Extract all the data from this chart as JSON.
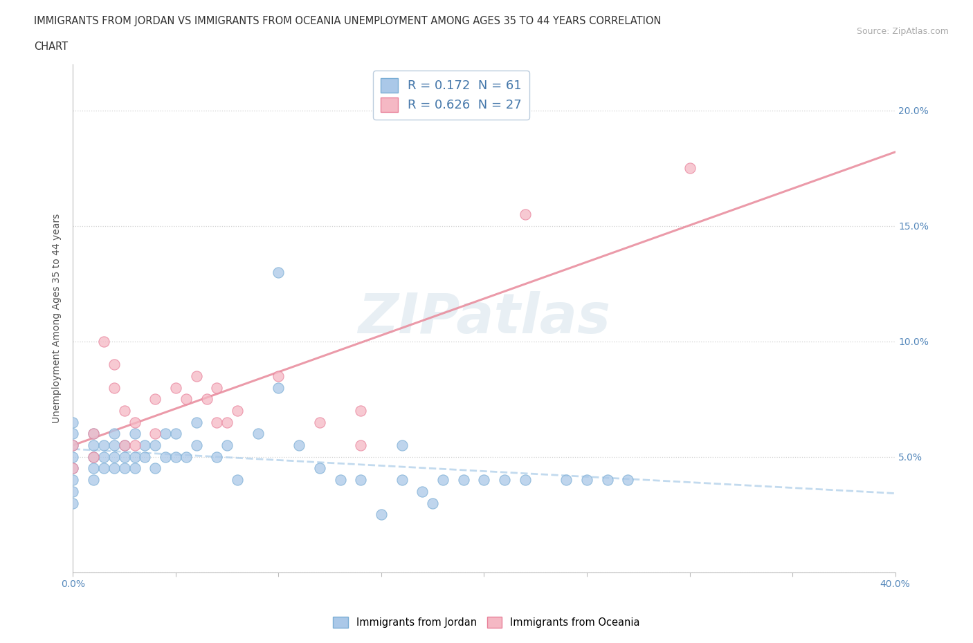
{
  "title_line1": "IMMIGRANTS FROM JORDAN VS IMMIGRANTS FROM OCEANIA UNEMPLOYMENT AMONG AGES 35 TO 44 YEARS CORRELATION",
  "title_line2": "CHART",
  "source_text": "Source: ZipAtlas.com",
  "ylabel": "Unemployment Among Ages 35 to 44 years",
  "xlim": [
    0.0,
    0.4
  ],
  "ylim": [
    0.0,
    0.22
  ],
  "xticks": [
    0.0,
    0.05,
    0.1,
    0.15,
    0.2,
    0.25,
    0.3,
    0.35,
    0.4
  ],
  "yticks": [
    0.0,
    0.05,
    0.1,
    0.15,
    0.2
  ],
  "jordan_color_fill": "#aac8e8",
  "jordan_color_edge": "#7aadd4",
  "oceania_color_fill": "#f5b8c4",
  "oceania_color_edge": "#e8809a",
  "jordan_R": 0.172,
  "jordan_N": 61,
  "oceania_R": 0.626,
  "oceania_N": 27,
  "trend_jordan_color": "#b8d4ec",
  "trend_oceania_color": "#e8899a",
  "watermark": "ZIPatlas",
  "jordan_scatter_x": [
    0.0,
    0.0,
    0.0,
    0.0,
    0.0,
    0.0,
    0.0,
    0.0,
    0.01,
    0.01,
    0.01,
    0.01,
    0.01,
    0.015,
    0.015,
    0.015,
    0.02,
    0.02,
    0.02,
    0.02,
    0.025,
    0.025,
    0.025,
    0.03,
    0.03,
    0.03,
    0.035,
    0.035,
    0.04,
    0.04,
    0.045,
    0.045,
    0.05,
    0.05,
    0.055,
    0.06,
    0.06,
    0.07,
    0.075,
    0.08,
    0.09,
    0.1,
    0.1,
    0.11,
    0.12,
    0.13,
    0.14,
    0.15,
    0.16,
    0.16,
    0.17,
    0.18,
    0.19,
    0.2,
    0.21,
    0.22,
    0.24,
    0.25,
    0.26,
    0.27,
    0.175
  ],
  "jordan_scatter_y": [
    0.04,
    0.045,
    0.05,
    0.055,
    0.06,
    0.065,
    0.035,
    0.03,
    0.04,
    0.05,
    0.055,
    0.06,
    0.045,
    0.045,
    0.05,
    0.055,
    0.045,
    0.05,
    0.055,
    0.06,
    0.045,
    0.05,
    0.055,
    0.045,
    0.05,
    0.06,
    0.05,
    0.055,
    0.045,
    0.055,
    0.05,
    0.06,
    0.05,
    0.06,
    0.05,
    0.055,
    0.065,
    0.05,
    0.055,
    0.04,
    0.06,
    0.08,
    0.13,
    0.055,
    0.045,
    0.04,
    0.04,
    0.025,
    0.04,
    0.055,
    0.035,
    0.04,
    0.04,
    0.04,
    0.04,
    0.04,
    0.04,
    0.04,
    0.04,
    0.04,
    0.03
  ],
  "oceania_scatter_x": [
    0.0,
    0.0,
    0.01,
    0.01,
    0.015,
    0.02,
    0.02,
    0.025,
    0.025,
    0.03,
    0.03,
    0.04,
    0.04,
    0.05,
    0.055,
    0.06,
    0.065,
    0.07,
    0.07,
    0.075,
    0.08,
    0.1,
    0.12,
    0.14,
    0.14,
    0.22,
    0.3
  ],
  "oceania_scatter_y": [
    0.045,
    0.055,
    0.05,
    0.06,
    0.1,
    0.08,
    0.09,
    0.055,
    0.07,
    0.055,
    0.065,
    0.06,
    0.075,
    0.08,
    0.075,
    0.085,
    0.075,
    0.065,
    0.08,
    0.065,
    0.07,
    0.085,
    0.065,
    0.055,
    0.07,
    0.155,
    0.175
  ]
}
